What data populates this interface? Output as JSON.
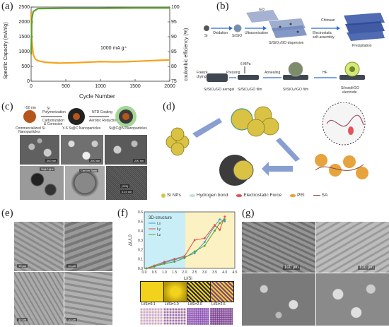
{
  "panel_labels": {
    "a": "(a)",
    "b": "(b)",
    "c": "(c)",
    "d": "(d)",
    "e": "(e)",
    "f": "(f)",
    "g": "(g)"
  },
  "chart_data": [
    {
      "type": "line",
      "title": "",
      "xlabel": "Cycle Number",
      "ylabel": "Specific Capacity (mAh/g)",
      "y2label": "coulombic efficiency (%)",
      "xlim": [
        0,
        2000
      ],
      "ylim": [
        0,
        2500
      ],
      "y2lim": [
        75,
        100
      ],
      "xticks": [
        0,
        500,
        1000,
        1500,
        2000
      ],
      "yticks": [
        0,
        500,
        1000,
        1500,
        2000,
        2500
      ],
      "y2ticks": [
        75,
        80,
        85,
        90,
        95,
        100
      ],
      "annotation": "1000 mA g",
      "series": [
        {
          "x": [
            0,
            10,
            30,
            60,
            100,
            200,
            400,
            600,
            800,
            1000,
            1200,
            1400,
            1600,
            1800,
            2000
          ],
          "values": [
            2300,
            1400,
            900,
            750,
            690,
            640,
            610,
            620,
            640,
            660,
            650,
            660,
            680,
            700,
            720
          ],
          "color": "#f7a21b",
          "axis": "left"
        },
        {
          "x": [
            0,
            10,
            30,
            100,
            500,
            1000,
            1500,
            2000
          ],
          "values": [
            84,
            96,
            98.5,
            99.5,
            99.6,
            99.6,
            99.7,
            99.7
          ],
          "color": "#5aa02c",
          "axis": "right"
        }
      ]
    },
    {
      "type": "line",
      "title": "",
      "legend_title": "3D-structure",
      "xlabel": "Li/Si",
      "ylabel": "ΔL/L0",
      "xlim": [
        0,
        4.5
      ],
      "ylim": [
        0,
        0.6
      ],
      "xticks": [
        "0.0",
        "0.5",
        "1.0",
        "1.5",
        "2.0",
        "2.5",
        "3.0",
        "3.5",
        "4.0",
        "4.5"
      ],
      "yticks": [
        "0.0",
        "0.1",
        "0.2",
        "0.3",
        "0.4",
        "0.5",
        "0.6"
      ],
      "series": [
        {
          "name": "Lx",
          "color": "#3c9ad6",
          "x": [
            0.1,
            0.5,
            1.0,
            1.5,
            2.0,
            2.5,
            3.0,
            3.5,
            3.75,
            4.0
          ],
          "values": [
            0.0,
            0.02,
            0.06,
            0.09,
            0.12,
            0.16,
            0.28,
            0.45,
            0.52,
            0.5
          ]
        },
        {
          "name": "Ly",
          "color": "#e0504a",
          "x": [
            0.1,
            0.5,
            1.0,
            1.5,
            2.0,
            2.5,
            3.0,
            3.5,
            3.75,
            4.0
          ],
          "values": [
            0.0,
            0.03,
            0.07,
            0.1,
            0.13,
            0.3,
            0.32,
            0.46,
            0.41,
            0.55
          ]
        },
        {
          "name": "Lz",
          "color": "#5aa02c",
          "x": [
            0.1,
            0.5,
            1.0,
            1.5,
            2.0,
            2.5,
            3.0,
            3.5,
            3.75,
            4.0
          ],
          "values": [
            0.0,
            0.02,
            0.05,
            0.07,
            0.11,
            0.18,
            0.24,
            0.4,
            0.48,
            0.52
          ]
        }
      ]
    }
  ],
  "b": {
    "si": "Si",
    "oxidation": "Oxidation",
    "sio2": "Si/SiO",
    "go": "GO",
    "ultra": "Ultrasonication",
    "dispersion": "Si/SiO₂/GO dispersion",
    "chitosan": "Chitosan",
    "electro": "Electrostatic",
    "selfassembly": "self-assembly",
    "precip": "Precipitation",
    "mpa": "6 MPa",
    "freeze": "Freeze",
    "drying": "drying",
    "pressing": "Pressing",
    "annealing": "Annealing",
    "hf": "HF",
    "aerogel": "Si/SiO₂/GO aerogel",
    "film1": "Si/SiO₂/GO film",
    "film2": "Si/SiO₂/rGO film",
    "electrode1": "Si/void/rGO",
    "electrode2": "electrode"
  },
  "c": {
    "s1": "Commercialized Si",
    "s1b": "Nanoparticles",
    "s2": "Y-S Si@C Nanoparticles",
    "s3": "Si@C@N Nanoparticles",
    "step1": "Si",
    "step1b": "Polymerization",
    "step1c": "Carbonization",
    "step1d": "& Corrosion",
    "step2": "NTD Coating",
    "step2b": "Aerobic Reduction",
    "nano": "~50 nm",
    "sb1": "200 nm",
    "sb2": "200 nm",
    "sb3": "200 nm",
    "label_cnt": "Si@C@N",
    "label_shell": "Carbon Shell",
    "d1": "0.19 nm",
    "d2": "(220)"
  },
  "d": {
    "legend": [
      "Si NPs",
      "Hydrogen bond",
      "Electrostatic Force",
      "PEI",
      "SA"
    ]
  },
  "e": {
    "scales": [
      "10 μm",
      "10 μm",
      "10 μm",
      "10 μm"
    ]
  },
  "f": {
    "insets": [
      "Li/Si=0.1",
      "Li/Si=1.0",
      "Li/Si=2.0",
      "Li/Si=2.6"
    ]
  },
  "g": {
    "scales": [
      "100 μm",
      "100 μm"
    ]
  }
}
